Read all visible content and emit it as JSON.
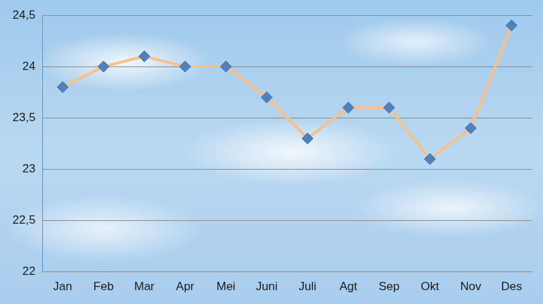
{
  "chart_data": {
    "type": "line",
    "categories": [
      "Jan",
      "Feb",
      "Mar",
      "Apr",
      "Mei",
      "Juni",
      "Juli",
      "Agt",
      "Sep",
      "Okt",
      "Nov",
      "Des"
    ],
    "values": [
      23.8,
      24.0,
      24.1,
      24.0,
      24.0,
      23.7,
      23.3,
      23.6,
      23.6,
      23.1,
      23.4,
      24.4
    ],
    "color": "#f9c08c",
    "marker": "diamond",
    "line_style": "solid",
    "ylim": [
      22,
      24.5
    ],
    "yticks": [
      22,
      {
        "value": 22.5,
        "label": "22,5"
      },
      23,
      {
        "value": 23.5,
        "label": "23,5"
      },
      24,
      {
        "value": 24.5,
        "label": "24,5"
      }
    ],
    "grid": true
  }
}
